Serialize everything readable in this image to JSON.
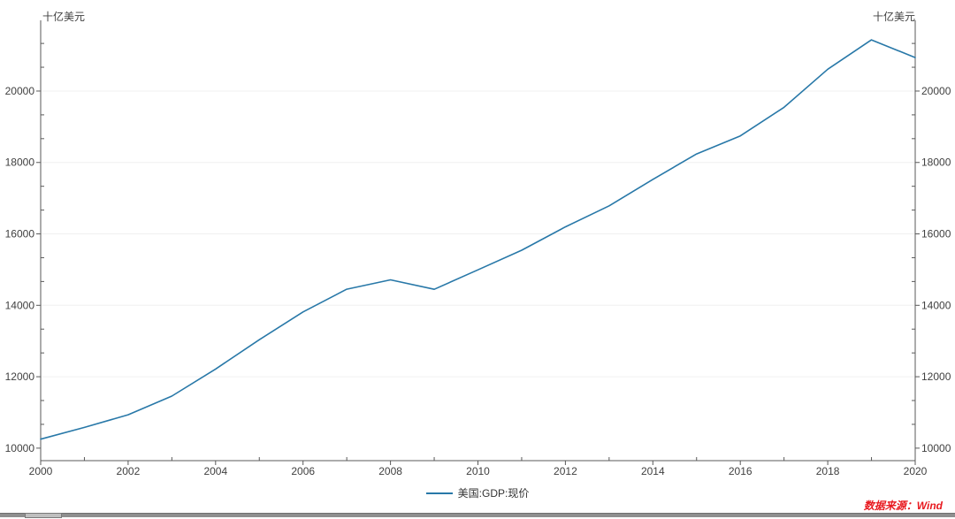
{
  "chart": {
    "unit_left": "十亿美元",
    "unit_right": "十亿美元",
    "legend": {
      "label": "美国:GDP:现价"
    },
    "source_note": "数据来源：Wind"
  },
  "chart_data": {
    "type": "line",
    "title": "",
    "x": [
      2000,
      2001,
      2002,
      2003,
      2004,
      2005,
      2006,
      2007,
      2008,
      2009,
      2010,
      2011,
      2012,
      2013,
      2014,
      2015,
      2016,
      2017,
      2018,
      2019,
      2020
    ],
    "series": [
      {
        "name": "美国:GDP:现价",
        "color": "#2878a8",
        "values": [
          10252,
          10582,
          10936,
          11458,
          12214,
          13037,
          13815,
          14452,
          14713,
          14449,
          14992,
          15543,
          16197,
          16785,
          17527,
          18238,
          18745,
          19543,
          20612,
          21433,
          20937
        ]
      }
    ],
    "xlabel": "",
    "ylabel": "十亿美元",
    "xlim": [
      2000,
      2020
    ],
    "ylim": [
      9650,
      21980
    ],
    "x_major_ticks": [
      2000,
      2002,
      2004,
      2006,
      2008,
      2010,
      2012,
      2014,
      2016,
      2018,
      2020
    ],
    "x_minor_ticks": [
      2001,
      2003,
      2005,
      2007,
      2009,
      2011,
      2013,
      2015,
      2017,
      2019
    ],
    "y_major_ticks": [
      10000,
      12000,
      14000,
      16000,
      18000,
      20000
    ],
    "y_tick_labels": [
      "10000",
      "12000",
      "14000",
      "16000",
      "18000",
      "20000"
    ],
    "grid": "faint horizontal lines at y major ticks",
    "legend_position": "bottom-center",
    "dual_y_axis": true
  },
  "colors": {
    "line": "#2878a8",
    "axis": "#595959",
    "tick_text": "#404040",
    "grid": "#f0f0f0",
    "source_text": "#e8191f"
  }
}
